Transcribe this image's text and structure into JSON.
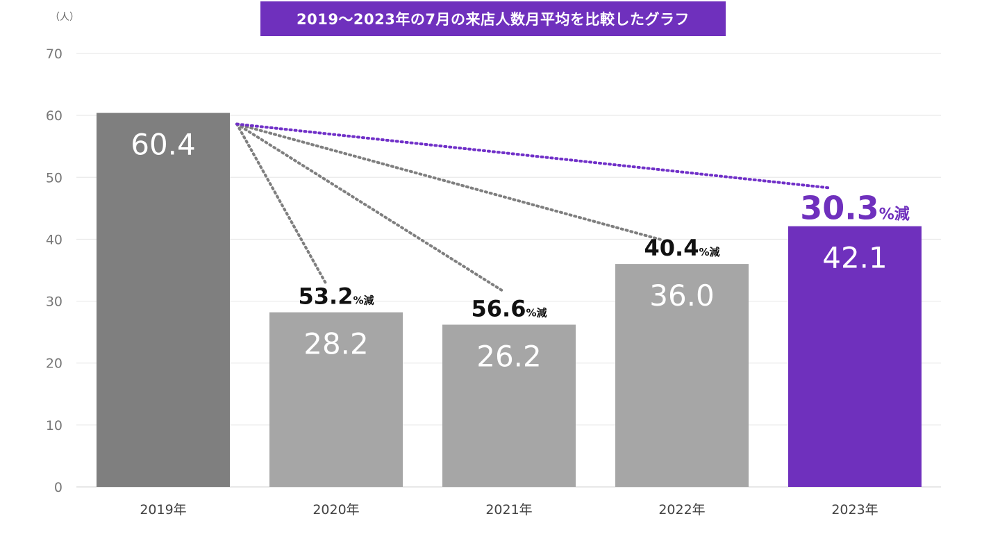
{
  "chart_data": {
    "type": "bar",
    "title": "2019〜2023年の7月の来店人数月平均を比較したグラフ",
    "unit_label": "（人）",
    "categories": [
      "2019年",
      "2020年",
      "2021年",
      "2022年",
      "2023年"
    ],
    "values": [
      60.4,
      28.2,
      26.2,
      36.0,
      42.1
    ],
    "value_labels": [
      "60.4",
      "28.2",
      "26.2",
      "36.0",
      "42.1"
    ],
    "bar_colors": [
      "#7f7f7f",
      "#a6a6a6",
      "#a6a6a6",
      "#a6a6a6",
      "#6f30bd"
    ],
    "ylim": [
      0,
      70
    ],
    "yticks": [
      0,
      10,
      20,
      30,
      40,
      50,
      60,
      70
    ],
    "grid": true,
    "decrease_annotations": [
      {
        "category": "2020年",
        "value": "53.2",
        "suffix": "%減",
        "color": "#111111"
      },
      {
        "category": "2021年",
        "value": "56.6",
        "suffix": "%減",
        "color": "#111111"
      },
      {
        "category": "2022年",
        "value": "40.4",
        "suffix": "%減",
        "color": "#111111"
      },
      {
        "category": "2023年",
        "value": "30.3",
        "suffix": "%減",
        "color": "#6f30bd"
      }
    ],
    "connector_color_default": "#7f7f7f",
    "connector_color_highlight": "#7030c8"
  }
}
